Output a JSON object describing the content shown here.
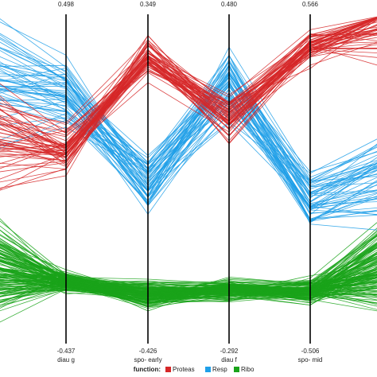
{
  "chart_data": {
    "type": "parallel-coordinates",
    "axes": [
      {
        "name": "diau g",
        "max": "0.498",
        "min": "-0.437"
      },
      {
        "name": "spo- early",
        "max": "0.349",
        "min": "-0.426"
      },
      {
        "name": "diau f",
        "max": "0.480",
        "min": "-0.292"
      },
      {
        "name": "spo- mid",
        "max": "0.566",
        "min": "-0.506"
      }
    ],
    "legend": {
      "title": "function:",
      "entries": [
        {
          "name": "Proteas",
          "color": "#d62728"
        },
        {
          "name": "Resp",
          "color": "#1f9fe8"
        },
        {
          "name": "Ribo",
          "color": "#1aa31a"
        }
      ]
    },
    "grid": false
  }
}
